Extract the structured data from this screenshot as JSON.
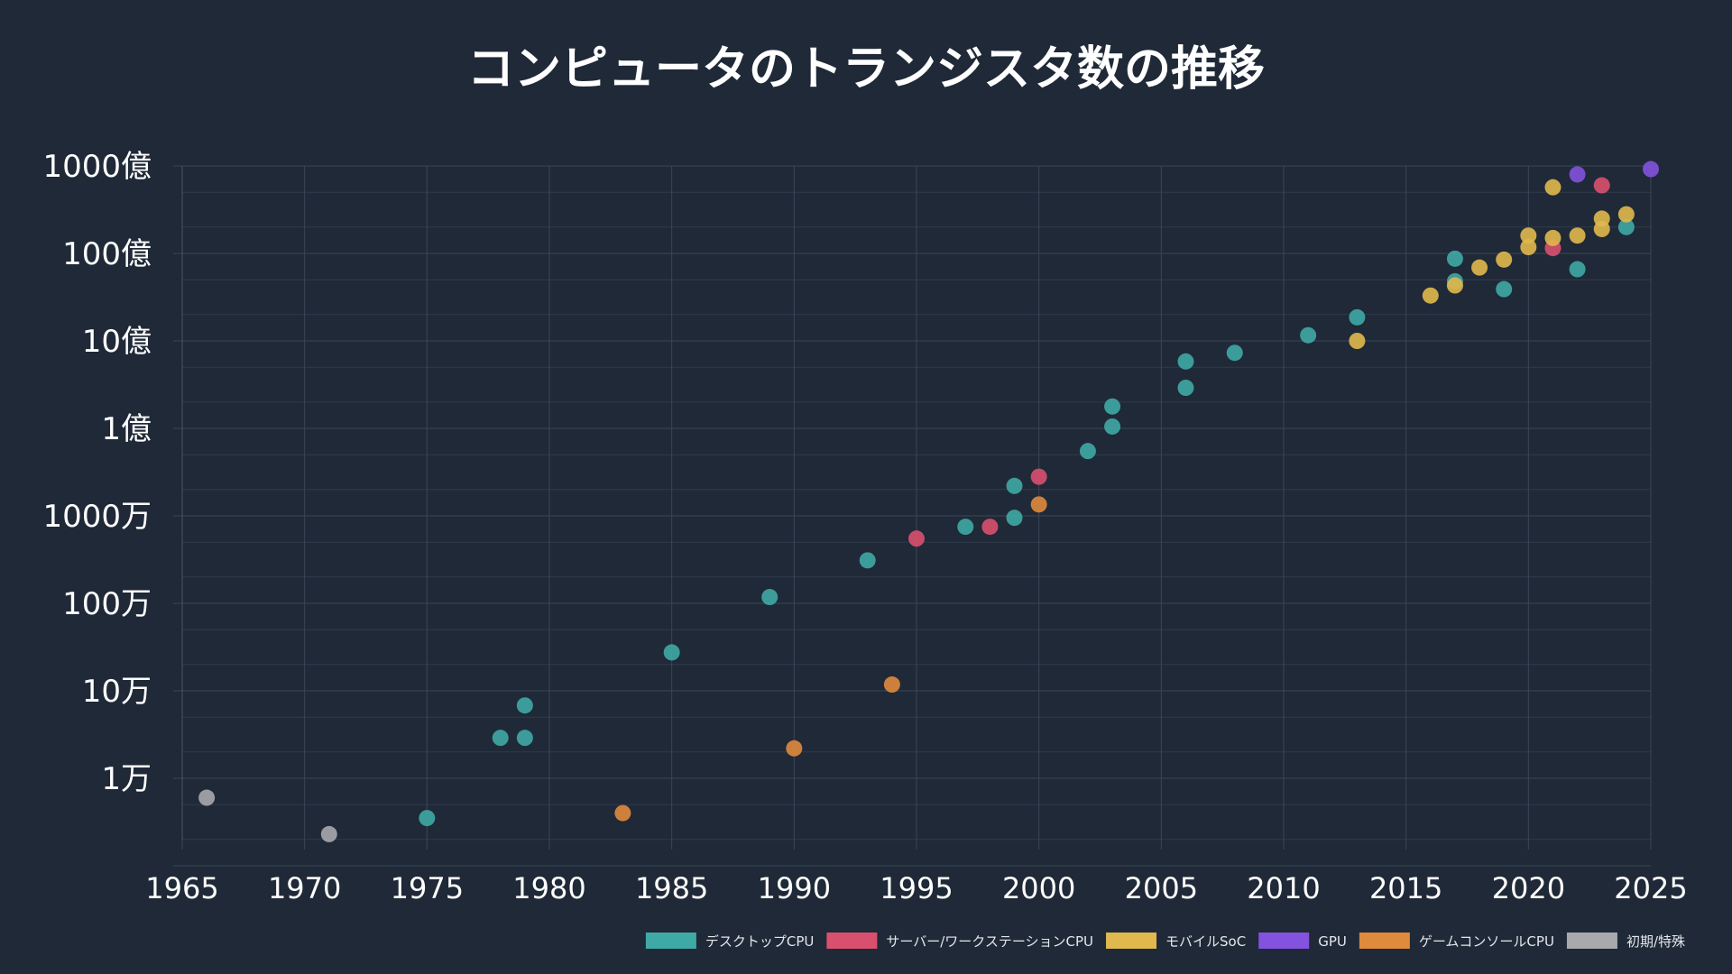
{
  "chart_data": {
    "type": "scatter",
    "title": "コンピュータのトランジスタ数の推移",
    "xlabel": "",
    "ylabel": "",
    "x_scale": "linear",
    "y_scale": "log",
    "xlim": [
      1965,
      2025
    ],
    "ylim": [
      1000,
      100000000000
    ],
    "grid": true,
    "legend_position": "bottom-right",
    "x_ticks": [
      {
        "value": 1965,
        "label": "1965"
      },
      {
        "value": 1970,
        "label": "1970"
      },
      {
        "value": 1975,
        "label": "1975"
      },
      {
        "value": 1980,
        "label": "1980"
      },
      {
        "value": 1985,
        "label": "1985"
      },
      {
        "value": 1990,
        "label": "1990"
      },
      {
        "value": 1995,
        "label": "1995"
      },
      {
        "value": 2000,
        "label": "2000"
      },
      {
        "value": 2005,
        "label": "2005"
      },
      {
        "value": 2010,
        "label": "2010"
      },
      {
        "value": 2015,
        "label": "2015"
      },
      {
        "value": 2020,
        "label": "2020"
      },
      {
        "value": 2025,
        "label": "2025"
      }
    ],
    "y_ticks": [
      {
        "value": 10000,
        "label": "1万"
      },
      {
        "value": 100000,
        "label": "10万"
      },
      {
        "value": 1000000,
        "label": "100万"
      },
      {
        "value": 10000000,
        "label": "1000万"
      },
      {
        "value": 100000000,
        "label": "1億"
      },
      {
        "value": 1000000000,
        "label": "10億"
      },
      {
        "value": 10000000000,
        "label": "100億"
      },
      {
        "value": 100000000000,
        "label": "1000億"
      }
    ],
    "series": [
      {
        "name": "デスクトップCPU",
        "color": "#3fa9a5",
        "points": [
          [
            1975,
            3510
          ],
          [
            1978,
            29000
          ],
          [
            1979,
            29000
          ],
          [
            1979,
            68000
          ],
          [
            1985,
            275000
          ],
          [
            1989,
            1180000
          ],
          [
            1993,
            3100000
          ],
          [
            1997,
            7500000
          ],
          [
            1999,
            9500000
          ],
          [
            1999,
            22000000
          ],
          [
            2002,
            55000000
          ],
          [
            2003,
            105000000
          ],
          [
            2003,
            178000000
          ],
          [
            2006,
            291000000
          ],
          [
            2006,
            582000000
          ],
          [
            2008,
            731000000
          ],
          [
            2011,
            1160000000
          ],
          [
            2013,
            1860000000
          ],
          [
            2017,
            4800000000
          ],
          [
            2017,
            8700000000
          ],
          [
            2019,
            3900000000
          ],
          [
            2022,
            6600000000
          ],
          [
            2024,
            20000000000
          ]
        ]
      },
      {
        "name": "サーバー/ワークステーションCPU",
        "color": "#d9506f",
        "points": [
          [
            1995,
            5500000
          ],
          [
            1998,
            7500000
          ],
          [
            2000,
            28000000
          ],
          [
            2021,
            11500000000
          ],
          [
            2023,
            60000000000
          ]
        ]
      },
      {
        "name": "モバイルSoC",
        "color": "#e0b84d",
        "points": [
          [
            2013,
            1000000000
          ],
          [
            2016,
            3300000000
          ],
          [
            2017,
            4300000000
          ],
          [
            2018,
            6900000000
          ],
          [
            2019,
            8500000000
          ],
          [
            2020,
            11800000000
          ],
          [
            2020,
            16000000000
          ],
          [
            2021,
            15000000000
          ],
          [
            2021,
            57000000000
          ],
          [
            2022,
            16000000000
          ],
          [
            2023,
            19000000000
          ],
          [
            2023,
            25000000000
          ],
          [
            2024,
            28000000000
          ]
        ]
      },
      {
        "name": "GPU",
        "color": "#8352de",
        "points": [
          [
            2022,
            80000000000
          ],
          [
            2025,
            92000000000
          ]
        ]
      },
      {
        "name": "ゲームコンソールCPU",
        "color": "#e08a3c",
        "points": [
          [
            1983,
            4000
          ],
          [
            1990,
            22000
          ],
          [
            1994,
            118000
          ],
          [
            2000,
            13500000
          ]
        ]
      },
      {
        "name": "初期/特殊",
        "color": "#a8a9ad",
        "points": [
          [
            1966,
            6000
          ],
          [
            1971,
            2300
          ]
        ]
      }
    ]
  }
}
